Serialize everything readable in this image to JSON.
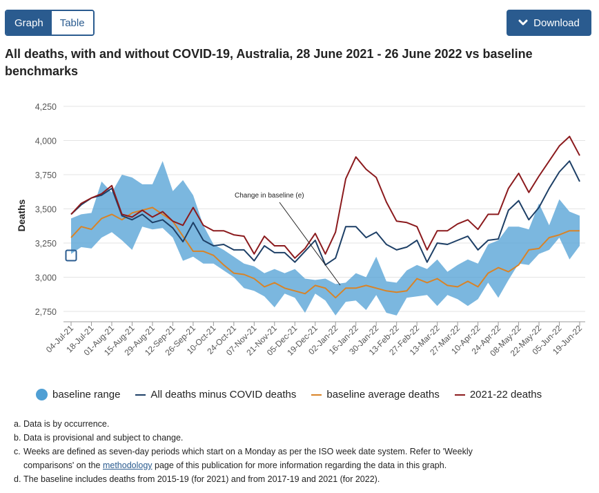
{
  "toggle": {
    "graph_label": "Graph",
    "table_label": "Table"
  },
  "download": {
    "label": "Download"
  },
  "title": "All deaths, with and without COVID-19, Australia, 28 June 2021 - 26 June 2022 vs baseline benchmarks",
  "colors": {
    "range": "#4f9fd4",
    "minus_covid": "#1d3f66",
    "baseline_avg": "#d98326",
    "deaths_2122": "#8b1a1d",
    "button": "#2a5b8f"
  },
  "chart_data": {
    "type": "line",
    "ylabel": "Deaths",
    "ylim": [
      2700,
      4250
    ],
    "yticks": [
      "2,750",
      "3,000",
      "3,250",
      "3,500",
      "3,750",
      "4,000",
      "4,250"
    ],
    "ytick_values": [
      2750,
      3000,
      3250,
      3500,
      3750,
      4000,
      4250
    ],
    "xtick_labels": [
      "04-Jul-21",
      "18-Jul-21",
      "01-Aug-21",
      "15-Aug-21",
      "29-Aug-21",
      "12-Sep-21",
      "26-Sep-21",
      "10-Oct-21",
      "24-Oct-21",
      "07-Nov-21",
      "21-Nov-21",
      "05-Dec-21",
      "19-Dec-21",
      "02-Jan-22",
      "16-Jan-22",
      "30-Jan-22",
      "13-Feb-22",
      "27-Feb-22",
      "13-Mar-22",
      "27-Mar-22",
      "10-Apr-22",
      "24-Apr-22",
      "08-May-22",
      "22-May-22",
      "05-Jun-22",
      "19-Jun-22"
    ],
    "annotation": "Change in baseline (e)",
    "series": [
      {
        "name": "baseline range",
        "type": "range",
        "lower": [
          3170,
          3220,
          3210,
          3290,
          3330,
          3270,
          3200,
          3370,
          3350,
          3360,
          3290,
          3120,
          3150,
          3100,
          3100,
          3050,
          3000,
          2920,
          2900,
          2860,
          2780,
          2880,
          2850,
          2740,
          2880,
          2830,
          2720,
          2820,
          2830,
          2760,
          2870,
          2740,
          2720,
          2850,
          2860,
          2870,
          2790,
          2870,
          2840,
          2790,
          2840,
          2960,
          2850,
          2980,
          3100,
          3090,
          3170,
          3200,
          3290,
          3130,
          3230
        ],
        "upper": [
          3430,
          3460,
          3470,
          3700,
          3620,
          3750,
          3730,
          3680,
          3680,
          3850,
          3630,
          3710,
          3600,
          3380,
          3240,
          3200,
          3150,
          3100,
          3080,
          3030,
          3060,
          3030,
          3060,
          2990,
          2980,
          2990,
          2950,
          2960,
          3030,
          3000,
          3150,
          2970,
          2960,
          3050,
          3090,
          3060,
          3130,
          3040,
          3090,
          3130,
          3100,
          3240,
          3270,
          3370,
          3370,
          3350,
          3540,
          3380,
          3570,
          3480,
          3450
        ]
      },
      {
        "name": "All deaths minus COVID deaths",
        "values": [
          3460,
          3530,
          3580,
          3600,
          3650,
          3450,
          3420,
          3460,
          3400,
          3420,
          3360,
          3260,
          3400,
          3270,
          3230,
          3240,
          3200,
          3200,
          3120,
          3230,
          3180,
          3180,
          3110,
          3190,
          3270,
          3090,
          3140,
          3370,
          3370,
          3290,
          3330,
          3240,
          3200,
          3220,
          3270,
          3110,
          3250,
          3240,
          3270,
          3300,
          3200,
          3270,
          3280,
          3490,
          3560,
          3420,
          3510,
          3650,
          3770,
          3850,
          3700
        ]
      },
      {
        "name": "baseline average deaths",
        "values": [
          3290,
          3370,
          3350,
          3430,
          3460,
          3420,
          3470,
          3490,
          3510,
          3460,
          3410,
          3300,
          3190,
          3190,
          3160,
          3090,
          3030,
          3020,
          2990,
          2930,
          2960,
          2920,
          2900,
          2880,
          2940,
          2920,
          2850,
          2920,
          2920,
          2940,
          2920,
          2900,
          2890,
          2900,
          2990,
          2960,
          2990,
          2940,
          2930,
          2970,
          2930,
          3030,
          3070,
          3040,
          3090,
          3200,
          3210,
          3290,
          3310,
          3340,
          3340
        ]
      },
      {
        "name": "2021-22 deaths",
        "values": [
          3460,
          3540,
          3580,
          3610,
          3670,
          3460,
          3440,
          3490,
          3440,
          3480,
          3410,
          3380,
          3510,
          3380,
          3340,
          3340,
          3310,
          3300,
          3170,
          3300,
          3230,
          3230,
          3140,
          3210,
          3320,
          3170,
          3330,
          3720,
          3880,
          3790,
          3730,
          3550,
          3410,
          3400,
          3370,
          3200,
          3340,
          3340,
          3390,
          3420,
          3350,
          3460,
          3460,
          3650,
          3760,
          3620,
          3740,
          3850,
          3960,
          4030,
          3890
        ]
      }
    ]
  },
  "notes": [
    {
      "mark": "a.",
      "text": "Data is by occurrence."
    },
    {
      "mark": "b.",
      "text": "Data is provisional and subject to change."
    },
    {
      "mark": "c.",
      "text_before": "Weeks are defined as seven-day periods which start on a Monday as per the ISO week date system. Refer to 'Weekly comparisons' on the ",
      "link": "methodology",
      "text_after": " page of this publication for more information regarding the data in this graph."
    },
    {
      "mark": "d.",
      "text": "The baseline includes deaths from 2015-19 (for 2021) and from 2017-19 and 2021 (for 2022)."
    }
  ]
}
